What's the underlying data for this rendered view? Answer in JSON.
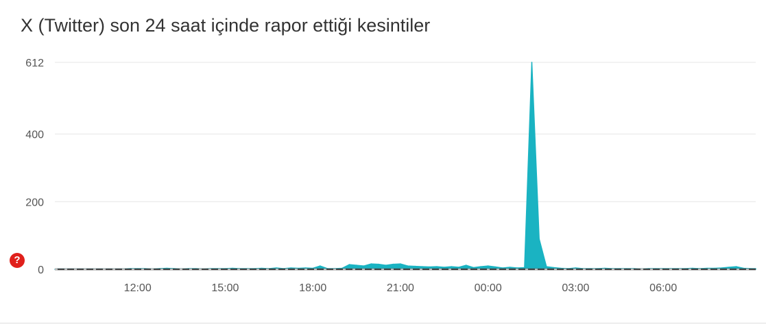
{
  "page": {
    "title": "X (Twitter) son 24 saat içinde rapor ettiği kesintiler",
    "help_glyph": "?"
  },
  "colors": {
    "accent": "#1ab3c2",
    "baseline": "#444444",
    "grid": "#e6e6e6",
    "help": "#e0201b"
  },
  "icons": {
    "help": "question-mark-icon"
  },
  "chart_data": {
    "type": "area",
    "title": "X (Twitter) son 24 saat içinde rapor ettiği kesintiler",
    "xlabel": "",
    "ylabel": "",
    "y_ticks": [
      0,
      200,
      400,
      612
    ],
    "x_ticks": [
      "12:00",
      "15:00",
      "18:00",
      "21:00",
      "00:00",
      "03:00",
      "06:00"
    ],
    "x_range": [
      "09:10",
      "09:10 (+1)"
    ],
    "ylim": [
      0,
      612
    ],
    "grid": true,
    "legend": "none",
    "series": [
      {
        "x": [
          "09:15",
          "09:30",
          "09:45",
          "10:00",
          "10:15",
          "10:30",
          "10:45",
          "11:00",
          "11:15",
          "11:30",
          "11:45",
          "12:00",
          "12:15",
          "12:30",
          "12:45",
          "13:00",
          "13:15",
          "13:30",
          "13:45",
          "14:00",
          "14:15",
          "14:30",
          "14:45",
          "15:00",
          "15:15",
          "15:30",
          "15:45",
          "16:00",
          "16:15",
          "16:30",
          "16:45",
          "17:00",
          "17:15",
          "17:30",
          "17:45",
          "18:00",
          "18:15",
          "18:30",
          "18:45",
          "19:00",
          "19:15",
          "19:30",
          "19:45",
          "20:00",
          "20:15",
          "20:30",
          "20:45",
          "21:00",
          "21:15",
          "21:30",
          "21:45",
          "22:00",
          "22:15",
          "22:30",
          "22:45",
          "23:00",
          "23:15",
          "23:30",
          "23:45",
          "00:00",
          "00:15",
          "00:30",
          "00:45",
          "01:00",
          "01:15",
          "01:30",
          "01:45",
          "02:00",
          "02:15",
          "02:30",
          "02:45",
          "03:00",
          "03:15",
          "03:30",
          "03:45",
          "04:00",
          "04:15",
          "04:30",
          "04:45",
          "05:00",
          "05:15",
          "05:30",
          "05:45",
          "06:00",
          "06:15",
          "06:30",
          "06:45",
          "07:00",
          "07:15",
          "07:30",
          "07:45",
          "08:00",
          "08:15",
          "08:30",
          "08:45",
          "09:00"
        ],
        "values": [
          1,
          1,
          1,
          1,
          1,
          1,
          1,
          1,
          1,
          1,
          2,
          2,
          2,
          1,
          2,
          3,
          2,
          1,
          2,
          2,
          1,
          2,
          2,
          2,
          3,
          2,
          2,
          2,
          3,
          2,
          4,
          2,
          4,
          3,
          4,
          3,
          10,
          2,
          2,
          3,
          14,
          12,
          10,
          16,
          15,
          12,
          15,
          16,
          10,
          9,
          8,
          7,
          8,
          6,
          8,
          6,
          12,
          5,
          8,
          10,
          7,
          4,
          6,
          4,
          5,
          612,
          90,
          8,
          5,
          3,
          2,
          4,
          2,
          2,
          2,
          3,
          2,
          2,
          2,
          2,
          1,
          2,
          2,
          2,
          2,
          2,
          2,
          3,
          2,
          3,
          3,
          4,
          6,
          8,
          3,
          2
        ]
      }
    ]
  }
}
